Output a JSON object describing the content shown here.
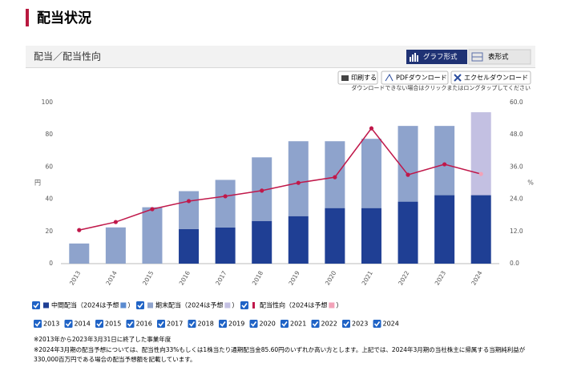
{
  "header": {
    "title": "配当状況",
    "section": "配当／配当性向",
    "view_buttons": [
      "グラフ形式",
      "表形式"
    ],
    "actions": [
      "印刷する",
      "PDFダウンロード",
      "エクセルダウンロード"
    ],
    "download_note": "ダウンロードできない場合はクリックまたはロングタップしてください"
  },
  "chart_data": {
    "type": "bar",
    "categories": [
      "2013",
      "2014",
      "2015",
      "2016",
      "2017",
      "2018",
      "2019",
      "2020",
      "2021",
      "2022",
      "2023",
      "2024"
    ],
    "ylabel": "円",
    "y2label": "%",
    "ylim": [
      0,
      100
    ],
    "yticks": [
      0,
      20,
      40,
      60,
      80,
      100
    ],
    "y2lim": [
      0,
      60
    ],
    "y2ticks": [
      {
        "value": 0,
        "label": "0.0"
      },
      {
        "value": 12,
        "label": "12.0"
      },
      {
        "value": 24,
        "label": "24.0"
      },
      {
        "value": 36,
        "label": "36.0"
      },
      {
        "value": 48,
        "label": "48.0"
      },
      {
        "value": 60,
        "label": "60.0"
      }
    ],
    "stacked": true,
    "series": [
      {
        "name": "中間配当",
        "legend_note": "（2024は予想",
        "legend_note_end": "）",
        "forecast_color": "#5b8bd0",
        "color": "#1f3f94",
        "colors": [
          "#1f3f94",
          "#1f3f94",
          "#1f3f94",
          "#1f3f94",
          "#1f3f94",
          "#1f3f94",
          "#1f3f94",
          "#1f3f94",
          "#1f3f94",
          "#1f3f94",
          "#1f3f94",
          "#1f3f94"
        ],
        "values": [
          0,
          0,
          0,
          21.5,
          22.5,
          26.5,
          29.5,
          34.5,
          34.5,
          38.5,
          42.5,
          42.5
        ]
      },
      {
        "name": "期末配当",
        "legend_note": "（2024は予想",
        "legend_note_end": "）",
        "forecast_color": "#c3c0e2",
        "color": "#8ea3cc",
        "colors": [
          "#8ea3cc",
          "#8ea3cc",
          "#8ea3cc",
          "#8ea3cc",
          "#8ea3cc",
          "#8ea3cc",
          "#8ea3cc",
          "#8ea3cc",
          "#8ea3cc",
          "#8ea3cc",
          "#8ea3cc",
          "#c3c0e2"
        ],
        "values": [
          12.5,
          22.5,
          35,
          23.5,
          29.5,
          39.5,
          46.5,
          41.5,
          43,
          47,
          43,
          51.5
        ]
      },
      {
        "name": "配当性向",
        "type": "line",
        "axis": "y2",
        "legend_note": "（2024は予想",
        "legend_note_end": "）",
        "forecast_color": "#f2a2b8",
        "color": "#c0184a",
        "colors": [
          "#c0184a",
          "#c0184a",
          "#c0184a",
          "#c0184a",
          "#c0184a",
          "#c0184a",
          "#c0184a",
          "#c0184a",
          "#c0184a",
          "#c0184a",
          "#c0184a",
          "#f2a2b8"
        ],
        "values": [
          12.5,
          15.5,
          20.3,
          23.3,
          25.1,
          27.2,
          30.1,
          32.2,
          50.4,
          33.1,
          37,
          33.4
        ]
      }
    ]
  },
  "footnotes": [
    "※2013年から2023年3月31日に終了した事業年度",
    "※2024年3月期の配当予想については、配当性向33%もしくは1株当たり通期配当金85.60円のいずれか高い方とします。上記では、2024年3月期の当社株主に帰属する当期純利益が",
    "330,000百万円である場合の配当予想額を記載しています。"
  ]
}
